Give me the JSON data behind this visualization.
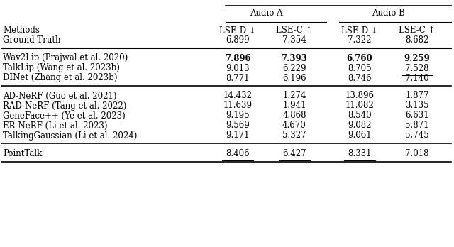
{
  "col_headers_group": [
    "Audio A",
    "Audio B"
  ],
  "col_headers_sub": [
    "LSE-D ↓",
    "LSE-C ↑",
    "LSE-D ↓",
    "LSE-C ↑"
  ],
  "row_label_col1": "Methods",
  "row_label_col2": "Ground Truth",
  "ground_truth": [
    "6.899",
    "7.354",
    "7.322",
    "8.682"
  ],
  "groups": [
    {
      "rows": [
        {
          "method": "Wav2Lip (Prajwal et al. 2020)",
          "values": [
            "7.896",
            "7.393",
            "6.760",
            "9.259"
          ],
          "bold": [
            true,
            true,
            true,
            true
          ],
          "underline": [
            false,
            false,
            false,
            false
          ]
        },
        {
          "method": "TalkLip (Wang et al. 2023b)",
          "values": [
            "9.013",
            "6.229",
            "8.705",
            "7.528"
          ],
          "bold": [
            false,
            false,
            false,
            false
          ],
          "underline": [
            false,
            false,
            false,
            true
          ]
        },
        {
          "method": "DINet (Zhang et al. 2023b)",
          "values": [
            "8.771",
            "6.196",
            "8.746",
            "7.140"
          ],
          "bold": [
            false,
            false,
            false,
            false
          ],
          "underline": [
            false,
            false,
            false,
            false
          ]
        }
      ]
    },
    {
      "rows": [
        {
          "method": "AD-NeRF (Guo et al. 2021)",
          "values": [
            "14.432",
            "1.274",
            "13.896",
            "1.877"
          ],
          "bold": [
            false,
            false,
            false,
            false
          ],
          "underline": [
            false,
            false,
            false,
            false
          ]
        },
        {
          "method": "RAD-NeRF (Tang et al. 2022)",
          "values": [
            "11.639",
            "1.941",
            "11.082",
            "3.135"
          ],
          "bold": [
            false,
            false,
            false,
            false
          ],
          "underline": [
            false,
            false,
            false,
            false
          ]
        },
        {
          "method": "GeneFace++ (Ye et al. 2023)",
          "values": [
            "9.195",
            "4.868",
            "8.540",
            "6.631"
          ],
          "bold": [
            false,
            false,
            false,
            false
          ],
          "underline": [
            false,
            false,
            false,
            false
          ]
        },
        {
          "method": "ER-NeRF (Li et al. 2023)",
          "values": [
            "9.569",
            "4.670",
            "9.082",
            "5.871"
          ],
          "bold": [
            false,
            false,
            false,
            false
          ],
          "underline": [
            false,
            false,
            false,
            false
          ]
        },
        {
          "method": "TalkingGaussian (Li et al. 2024)",
          "values": [
            "9.171",
            "5.327",
            "9.061",
            "5.745"
          ],
          "bold": [
            false,
            false,
            false,
            false
          ],
          "underline": [
            false,
            false,
            false,
            false
          ]
        }
      ]
    }
  ],
  "pointtalk": {
    "method": "PointTalk",
    "values": [
      "8.406",
      "6.427",
      "8.331",
      "7.018"
    ],
    "bold": [
      false,
      false,
      false,
      false
    ],
    "underline": [
      true,
      true,
      true,
      false
    ]
  },
  "bg_color": "#ffffff",
  "text_color": "#000000",
  "font_size": 8.5,
  "header_font_size": 8.5
}
